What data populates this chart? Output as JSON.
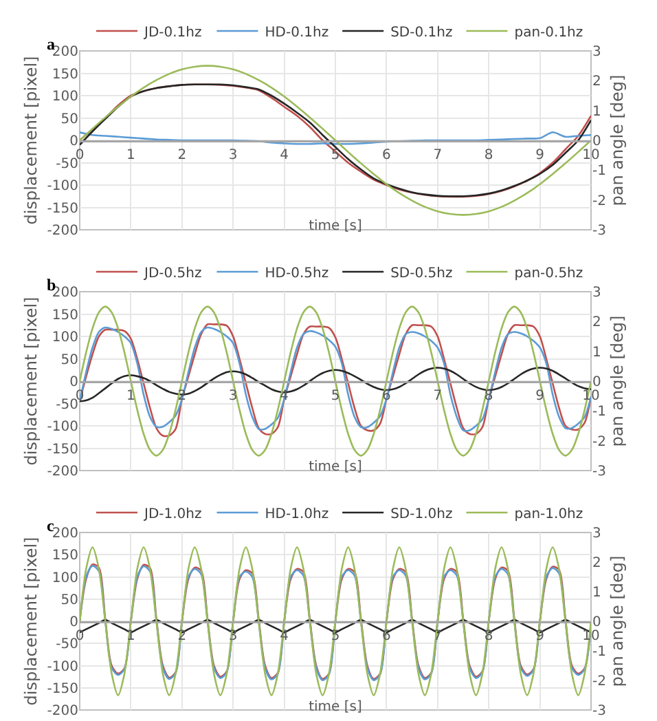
{
  "chart_data": [
    {
      "type": "line",
      "title": "a",
      "xlabel": "time [s]",
      "ylabel": "displacement [pixel]",
      "y2label": "pan angle [deg]",
      "xlim": [
        0,
        10
      ],
      "xticks": [
        0,
        1,
        2,
        3,
        4,
        5,
        6,
        7,
        8,
        9,
        10
      ],
      "ylim": [
        -200,
        200
      ],
      "yticks": [
        -200,
        -150,
        -100,
        -50,
        0,
        50,
        100,
        150,
        200
      ],
      "y2lim": [
        -3,
        3
      ],
      "y2ticks": [
        -3,
        -2,
        -1,
        0,
        1,
        2,
        3
      ],
      "grid": true,
      "legend": "top",
      "x": [
        0,
        0.25,
        0.5,
        0.75,
        1,
        1.25,
        1.5,
        1.75,
        2,
        2.25,
        2.5,
        2.75,
        3,
        3.25,
        3.5,
        3.75,
        4,
        4.25,
        4.5,
        4.75,
        5,
        5.25,
        5.5,
        5.75,
        6,
        6.25,
        6.5,
        6.75,
        7,
        7.25,
        7.5,
        7.75,
        8,
        8.25,
        8.5,
        8.75,
        9,
        9.25,
        9.5,
        9.75,
        10
      ],
      "series": [
        {
          "name": "JD-0.1hz",
          "color": "#c0504d",
          "values": [
            0,
            25,
            50,
            78,
            100,
            110,
            117,
            121,
            124,
            125,
            125,
            124,
            122,
            118,
            112,
            95,
            75,
            55,
            30,
            0,
            -25,
            -50,
            -70,
            -88,
            -100,
            -110,
            -117,
            -122,
            -125,
            -126,
            -126,
            -124,
            -120,
            -113,
            -103,
            -90,
            -73,
            -50,
            -20,
            10,
            55
          ]
        },
        {
          "name": "HD-0.1hz",
          "color": "#5b9bd5",
          "values": [
            18,
            12,
            10,
            8,
            6,
            4,
            2,
            1,
            0,
            0,
            0,
            0,
            0,
            -1,
            -2,
            -5,
            -7,
            -8,
            -8,
            -7,
            -8,
            -8,
            -7,
            -5,
            -3,
            -2,
            -1,
            0,
            0,
            0,
            0,
            0,
            1,
            2,
            3,
            4,
            5,
            18,
            8,
            10,
            12
          ]
        },
        {
          "name": "SD-0.1hz",
          "color": "#262626",
          "values": [
            -10,
            20,
            48,
            75,
            98,
            110,
            117,
            121,
            124,
            125,
            125,
            125,
            123,
            119,
            114,
            100,
            82,
            62,
            40,
            12,
            -15,
            -42,
            -65,
            -85,
            -98,
            -108,
            -116,
            -121,
            -124,
            -125,
            -125,
            -123,
            -119,
            -112,
            -102,
            -90,
            -75,
            -55,
            -28,
            0,
            45
          ]
        },
        {
          "name": "pan-0.1hz",
          "color": "#9bbb59",
          "axis": "y2",
          "values": [
            0,
            0.39,
            0.77,
            1.13,
            1.47,
            1.77,
            2.02,
            2.23,
            2.38,
            2.47,
            2.5,
            2.47,
            2.38,
            2.23,
            2.02,
            1.77,
            1.47,
            1.13,
            0.77,
            0.39,
            0,
            -0.39,
            -0.77,
            -1.13,
            -1.47,
            -1.77,
            -2.02,
            -2.23,
            -2.38,
            -2.47,
            -2.5,
            -2.47,
            -2.38,
            -2.23,
            -2.02,
            -1.77,
            -1.47,
            -1.13,
            -0.77,
            -0.39,
            0
          ]
        }
      ]
    },
    {
      "type": "line",
      "title": "b",
      "xlabel": "time [s]",
      "ylabel": "displacement [pixel]",
      "y2label": "pan angle [deg]",
      "xlim": [
        0,
        10
      ],
      "xticks": [
        0,
        1,
        2,
        3,
        4,
        5,
        6,
        7,
        8,
        9,
        10
      ],
      "ylim": [
        -200,
        200
      ],
      "yticks": [
        -200,
        -150,
        -100,
        -50,
        0,
        50,
        100,
        150,
        200
      ],
      "y2lim": [
        -3,
        3
      ],
      "y2ticks": [
        -3,
        -2,
        -1,
        0,
        1,
        2,
        3
      ],
      "grid": true,
      "legend": "top",
      "x": [
        0,
        0.125,
        0.25,
        0.375,
        0.5,
        0.625,
        0.75,
        0.875,
        1,
        1.125,
        1.25,
        1.375,
        1.5,
        1.625,
        1.75,
        1.875,
        2,
        2.125,
        2.25,
        2.375,
        2.5,
        2.625,
        2.75,
        2.875,
        3,
        3.125,
        3.25,
        3.375,
        3.5,
        3.625,
        3.75,
        3.875,
        4,
        4.125,
        4.25,
        4.375,
        4.5,
        4.625,
        4.75,
        4.875,
        5,
        5.125,
        5.25,
        5.375,
        5.5,
        5.625,
        5.75,
        5.875,
        6,
        6.125,
        6.25,
        6.375,
        6.5,
        6.625,
        6.75,
        6.875,
        7,
        7.125,
        7.25,
        7.375,
        7.5,
        7.625,
        7.75,
        7.875,
        8,
        8.125,
        8.25,
        8.375,
        8.5,
        8.625,
        8.75,
        8.875,
        9,
        9.125,
        9.25,
        9.375,
        9.5,
        9.625,
        9.75,
        9.875,
        10
      ],
      "series": [
        {
          "name": "JD-0.5hz",
          "color": "#c0504d",
          "values": [
            -45,
            10,
            60,
            100,
            115,
            115,
            115,
            112,
            95,
            50,
            -5,
            -60,
            -105,
            -122,
            -122,
            -107,
            -40,
            10,
            60,
            105,
            127,
            127,
            127,
            124,
            100,
            50,
            -5,
            -60,
            -105,
            -118,
            -118,
            -103,
            -40,
            10,
            60,
            105,
            122,
            122,
            122,
            119,
            98,
            50,
            -5,
            -60,
            -100,
            -110,
            -110,
            -95,
            -40,
            10,
            60,
            105,
            125,
            125,
            125,
            122,
            100,
            50,
            -5,
            -60,
            -105,
            -118,
            -118,
            -103,
            -40,
            10,
            60,
            105,
            125,
            125,
            125,
            122,
            100,
            50,
            -5,
            -60,
            -100,
            -108,
            -108,
            -93,
            -35
          ]
        },
        {
          "name": "HD-0.5hz",
          "color": "#5b9bd5",
          "values": [
            -45,
            20,
            75,
            110,
            120,
            117,
            110,
            100,
            85,
            40,
            -30,
            -80,
            -102,
            -102,
            -92,
            -77,
            -40,
            20,
            75,
            110,
            120,
            117,
            110,
            100,
            85,
            40,
            -30,
            -80,
            -107,
            -107,
            -97,
            -82,
            -40,
            20,
            75,
            105,
            112,
            109,
            102,
            92,
            77,
            40,
            -30,
            -80,
            -103,
            -103,
            -93,
            -78,
            -40,
            20,
            75,
            105,
            110,
            107,
            100,
            90,
            75,
            40,
            -30,
            -80,
            -110,
            -110,
            -100,
            -85,
            -40,
            20,
            75,
            105,
            110,
            107,
            100,
            90,
            75,
            40,
            -30,
            -80,
            -105,
            -105,
            -95,
            -80,
            -35
          ]
        },
        {
          "name": "SD-0.5hz",
          "color": "#262626",
          "values": [
            -45,
            -43,
            -37,
            -27,
            -16,
            -5,
            5,
            11,
            13,
            11,
            7,
            0,
            -9,
            -17,
            -24,
            -28,
            -30,
            -28,
            -22,
            -14,
            -4,
            6,
            14,
            20,
            22,
            20,
            15,
            7,
            -2,
            -10,
            -18,
            -23,
            -25,
            -23,
            -18,
            -10,
            0,
            10,
            18,
            23,
            25,
            23,
            18,
            11,
            3,
            -6,
            -13,
            -18,
            -20,
            -18,
            -13,
            -5,
            5,
            15,
            23,
            28,
            30,
            28,
            23,
            15,
            5,
            -5,
            -13,
            -18,
            -20,
            -18,
            -13,
            -5,
            5,
            15,
            23,
            28,
            30,
            28,
            23,
            15,
            6,
            -3,
            -11,
            -16,
            -18
          ]
        },
        {
          "name": "pan-0.5hz",
          "color": "#9bbb59",
          "axis": "y2",
          "values": [
            0,
            0.96,
            1.77,
            2.31,
            2.5,
            2.31,
            1.77,
            0.96,
            0,
            -0.96,
            -1.77,
            -2.31,
            -2.5,
            -2.31,
            -1.77,
            -0.96,
            0,
            0.96,
            1.77,
            2.31,
            2.5,
            2.31,
            1.77,
            0.96,
            0,
            -0.96,
            -1.77,
            -2.31,
            -2.5,
            -2.31,
            -1.77,
            -0.96,
            0,
            0.96,
            1.77,
            2.31,
            2.5,
            2.31,
            1.77,
            0.96,
            0,
            -0.96,
            -1.77,
            -2.31,
            -2.5,
            -2.31,
            -1.77,
            -0.96,
            0,
            0.96,
            1.77,
            2.31,
            2.5,
            2.31,
            1.77,
            0.96,
            0,
            -0.96,
            -1.77,
            -2.31,
            -2.5,
            -2.31,
            -1.77,
            -0.96,
            0,
            0.96,
            1.77,
            2.31,
            2.5,
            2.31,
            1.77,
            0.96,
            0,
            -0.96,
            -1.77,
            -2.31,
            -2.5,
            -2.31,
            -1.77,
            -0.96,
            0
          ]
        }
      ]
    },
    {
      "type": "line",
      "title": "c",
      "xlabel": "time [s]",
      "ylabel": "displacement [pixel]",
      "y2label": "pan angle [deg]",
      "xlim": [
        0,
        10
      ],
      "xticks": [
        0,
        1,
        2,
        3,
        4,
        5,
        6,
        7,
        8,
        9,
        10
      ],
      "ylim": [
        -200,
        200
      ],
      "yticks": [
        -200,
        -150,
        -100,
        -50,
        0,
        50,
        100,
        150,
        200
      ],
      "y2lim": [
        -3,
        3
      ],
      "y2ticks": [
        -3,
        -2,
        -1,
        0,
        1,
        2,
        3
      ],
      "grid": true,
      "legend": "top",
      "x": [
        0,
        0.125,
        0.25,
        0.375,
        0.5,
        0.625,
        0.75,
        0.875,
        1,
        1.125,
        1.25,
        1.375,
        1.5,
        1.625,
        1.75,
        1.875,
        2,
        2.125,
        2.25,
        2.375,
        2.5,
        2.625,
        2.75,
        2.875,
        3,
        3.125,
        3.25,
        3.375,
        3.5,
        3.625,
        3.75,
        3.875,
        4,
        4.125,
        4.25,
        4.375,
        4.5,
        4.625,
        4.75,
        4.875,
        5,
        5.125,
        5.25,
        5.375,
        5.5,
        5.625,
        5.75,
        5.875,
        6,
        6.125,
        6.25,
        6.375,
        6.5,
        6.625,
        6.75,
        6.875,
        7,
        7.125,
        7.25,
        7.375,
        7.5,
        7.625,
        7.75,
        7.875,
        8,
        8.125,
        8.25,
        8.375,
        8.5,
        8.625,
        8.75,
        8.875,
        9,
        9.125,
        9.25,
        9.375,
        9.5,
        9.625,
        9.75,
        9.875,
        10
      ],
      "series": [
        {
          "name": "JD-1.0hz",
          "color": "#c0504d",
          "values": [
            0,
            95,
            128,
            121,
            5,
            -100,
            -118,
            -106,
            0,
            95,
            127,
            120,
            5,
            -100,
            -127,
            -115,
            0,
            95,
            121,
            114,
            5,
            -100,
            -125,
            -113,
            0,
            95,
            115,
            108,
            5,
            -100,
            -128,
            -116,
            0,
            95,
            118,
            111,
            5,
            -100,
            -130,
            -118,
            0,
            95,
            118,
            111,
            5,
            -100,
            -130,
            -118,
            0,
            95,
            118,
            111,
            5,
            -100,
            -128,
            -116,
            0,
            95,
            118,
            111,
            5,
            -100,
            -125,
            -113,
            0,
            95,
            121,
            114,
            5,
            -100,
            -120,
            -108,
            0,
            95,
            123,
            116,
            5,
            -100,
            -118,
            -106,
            0
          ]
        },
        {
          "name": "HD-1.0hz",
          "color": "#5b9bd5",
          "values": [
            0,
            100,
            125,
            113,
            0,
            -105,
            -121,
            -108,
            0,
            100,
            124,
            112,
            0,
            -105,
            -130,
            -117,
            0,
            100,
            118,
            106,
            0,
            -105,
            -128,
            -115,
            0,
            100,
            112,
            100,
            0,
            -105,
            -131,
            -118,
            0,
            100,
            115,
            103,
            0,
            -105,
            -133,
            -120,
            0,
            100,
            115,
            103,
            0,
            -105,
            -133,
            -120,
            0,
            100,
            115,
            103,
            0,
            -105,
            -131,
            -118,
            0,
            100,
            115,
            103,
            0,
            -105,
            -128,
            -115,
            0,
            100,
            118,
            106,
            0,
            -105,
            -123,
            -110,
            0,
            100,
            120,
            108,
            0,
            -105,
            -121,
            -108,
            0
          ]
        },
        {
          "name": "SD-1.0hz",
          "color": "#262626",
          "values": [
            -25,
            -18,
            -11,
            -4,
            3,
            -4,
            -11,
            -18,
            -25,
            -18,
            -11,
            -4,
            3,
            -4,
            -11,
            -18,
            -25,
            -18,
            -11,
            -4,
            3,
            -4,
            -11,
            -18,
            -25,
            -18,
            -11,
            -4,
            3,
            -4,
            -11,
            -18,
            -25,
            -18,
            -11,
            -4,
            3,
            -4,
            -11,
            -18,
            -25,
            -18,
            -11,
            -4,
            3,
            -4,
            -11,
            -18,
            -25,
            -18,
            -11,
            -4,
            3,
            -4,
            -11,
            -18,
            -25,
            -18,
            -11,
            -4,
            3,
            -4,
            -11,
            -18,
            -25,
            -18,
            -11,
            -4,
            3,
            -4,
            -11,
            -18,
            -25,
            -18,
            -11,
            -4,
            3,
            -4,
            -11,
            -18,
            -25
          ]
        },
        {
          "name": "pan-1.0hz",
          "color": "#9bbb59",
          "axis": "y2",
          "values": [
            0,
            1.77,
            2.5,
            1.77,
            0,
            -1.77,
            -2.5,
            -1.77,
            0,
            1.77,
            2.5,
            1.77,
            0,
            -1.77,
            -2.5,
            -1.77,
            0,
            1.77,
            2.5,
            1.77,
            0,
            -1.77,
            -2.5,
            -1.77,
            0,
            1.77,
            2.5,
            1.77,
            0,
            -1.77,
            -2.5,
            -1.77,
            0,
            1.77,
            2.5,
            1.77,
            0,
            -1.77,
            -2.5,
            -1.77,
            0,
            1.77,
            2.5,
            1.77,
            0,
            -1.77,
            -2.5,
            -1.77,
            0,
            1.77,
            2.5,
            1.77,
            0,
            -1.77,
            -2.5,
            -1.77,
            0,
            1.77,
            2.5,
            1.77,
            0,
            -1.77,
            -2.5,
            -1.77,
            0,
            1.77,
            2.5,
            1.77,
            0,
            -1.77,
            -2.5,
            -1.77,
            0,
            1.77,
            2.5,
            1.77,
            0,
            -1.77,
            -2.5,
            -1.77,
            0
          ]
        }
      ]
    }
  ]
}
